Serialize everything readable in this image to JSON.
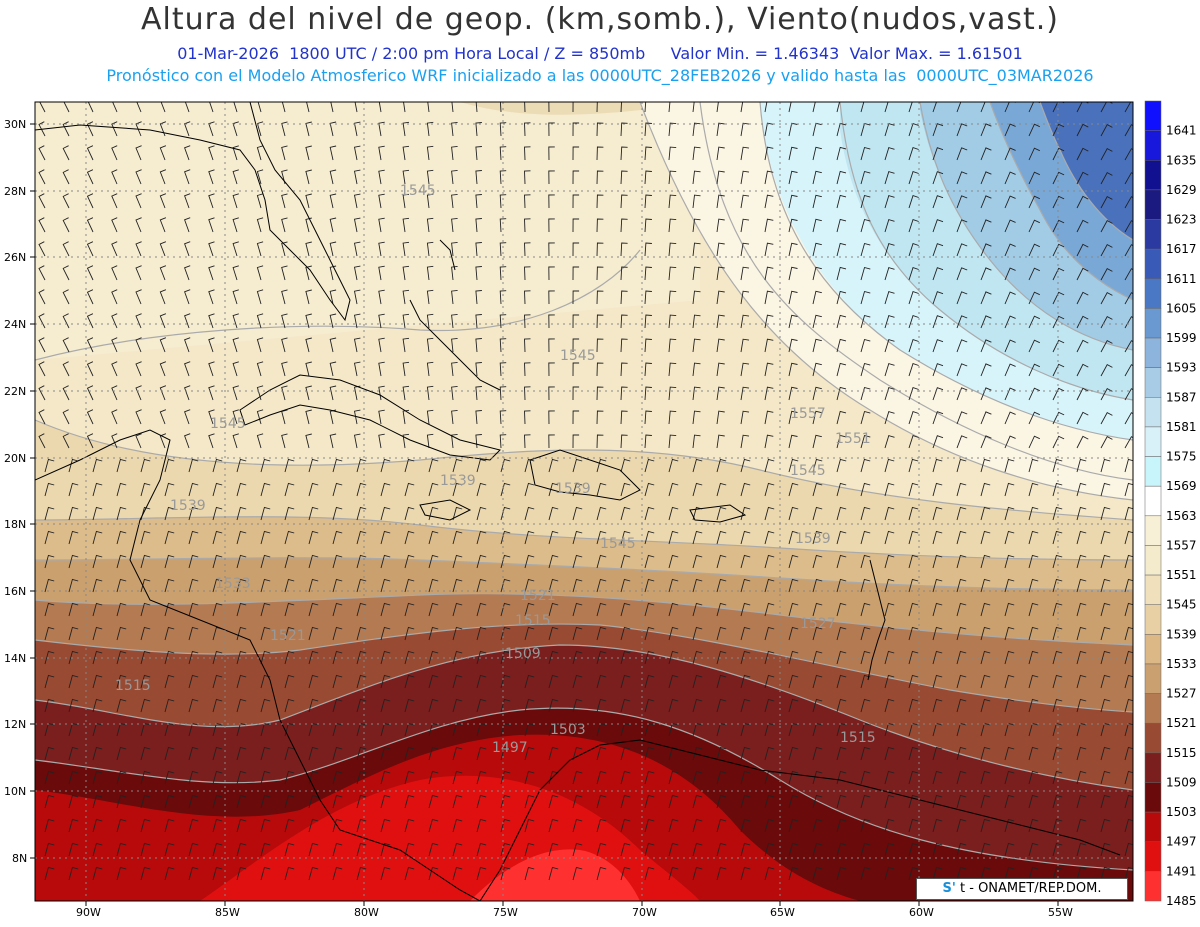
{
  "header": {
    "title": "Altura del nivel de geop. (km,somb.), Viento(nudos,vast.)",
    "line2": "01-Mar-2026  1800 UTC / 2:00 pm Hora Local / Z = 850mb     Valor Min. = 1.46343  Valor Max. = 1.61501",
    "line3": "Pronóstico con el Modelo Atmosferico WRF inicializado a las 0000UTC_28FEB2026 y valido hasta las  0000UTC_03MAR2026"
  },
  "axes": {
    "lat_labels": [
      "30N",
      "28N",
      "26N",
      "24N",
      "22N",
      "20N",
      "18N",
      "16N",
      "14N",
      "12N",
      "10N",
      "8N"
    ],
    "lon_labels": [
      "90W",
      "85W",
      "80W",
      "75W",
      "70W",
      "65W",
      "60W",
      "55W"
    ]
  },
  "colorbar": {
    "levels": [
      "1641",
      "1635",
      "1629",
      "1623",
      "1617",
      "1611",
      "1605",
      "1599",
      "1593",
      "1587",
      "1581",
      "1575",
      "1569",
      "1563",
      "1557",
      "1551",
      "1545",
      "1539",
      "1533",
      "1527",
      "1521",
      "1515",
      "1509",
      "1503",
      "1497",
      "1491",
      "1485"
    ],
    "colors": [
      "#1010ff",
      "#1818dd",
      "#101090",
      "#1a1a80",
      "#2a3aa0",
      "#3a5ab8",
      "#4a78c4",
      "#6a98d0",
      "#8cb4dc",
      "#a8cce6",
      "#c4e2f0",
      "#d8f0f8",
      "#c8f4fc",
      "#ffffff",
      "#f8f0d6",
      "#f4eacc",
      "#f0e0bc",
      "#e8d0a4",
      "#dcb886",
      "#caa070",
      "#b47a52",
      "#984a32",
      "#7a1e1e",
      "#6a0a0a",
      "#b80a0a",
      "#e01010",
      "#ff3030"
    ]
  },
  "contour_labels": [
    "1545",
    "1545",
    "1545",
    "1545",
    "1539",
    "1539",
    "1539",
    "1557",
    "1551",
    "1545",
    "1539",
    "1533",
    "1527",
    "1521",
    "1521",
    "1515",
    "1515",
    "1509",
    "1503",
    "1497",
    "1515"
  ],
  "credit": {
    "logo_text": "S'",
    "text": "t - ONAMET/REP.DOM."
  }
}
